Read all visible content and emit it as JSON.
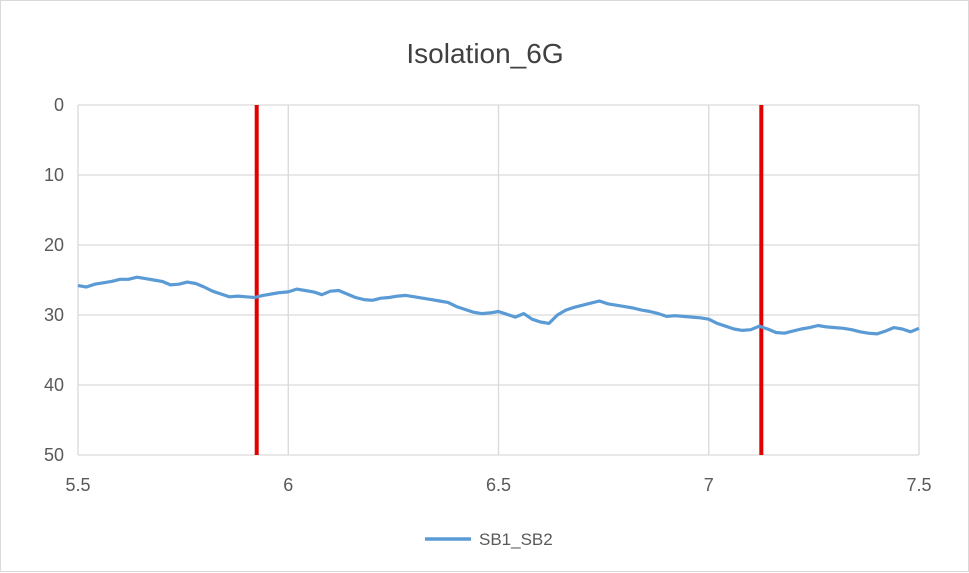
{
  "chart_data": {
    "type": "line",
    "title": "Isolation_6G",
    "xlabel": "",
    "ylabel": "",
    "xlim": [
      5.5,
      7.5
    ],
    "ylim": [
      0,
      50
    ],
    "y_reversed": true,
    "x_ticks": [
      "5.5",
      "6",
      "6.5",
      "7",
      "7.5"
    ],
    "x_tick_values": [
      5.5,
      6.0,
      6.5,
      7.0,
      7.5
    ],
    "y_ticks": [
      "0",
      "10",
      "20",
      "30",
      "40",
      "50"
    ],
    "y_tick_values": [
      0,
      10,
      20,
      30,
      40,
      50
    ],
    "grid": true,
    "legend_position": "bottom",
    "markers": [
      {
        "x": 5.925,
        "color": "#e00000"
      },
      {
        "x": 7.125,
        "color": "#e00000"
      }
    ],
    "series": [
      {
        "name": "SB1_SB2",
        "color": "#5b9bd5",
        "x": [
          5.5,
          5.52,
          5.54,
          5.56,
          5.58,
          5.6,
          5.62,
          5.64,
          5.66,
          5.68,
          5.7,
          5.72,
          5.74,
          5.76,
          5.78,
          5.8,
          5.82,
          5.84,
          5.86,
          5.88,
          5.9,
          5.92,
          5.94,
          5.96,
          5.98,
          6.0,
          6.02,
          6.04,
          6.06,
          6.08,
          6.1,
          6.12,
          6.14,
          6.16,
          6.18,
          6.2,
          6.22,
          6.24,
          6.26,
          6.28,
          6.3,
          6.32,
          6.34,
          6.36,
          6.38,
          6.4,
          6.42,
          6.44,
          6.46,
          6.48,
          6.5,
          6.52,
          6.54,
          6.56,
          6.58,
          6.6,
          6.62,
          6.64,
          6.66,
          6.68,
          6.7,
          6.72,
          6.74,
          6.76,
          6.78,
          6.8,
          6.82,
          6.84,
          6.86,
          6.88,
          6.9,
          6.92,
          6.94,
          6.96,
          6.98,
          7.0,
          7.02,
          7.04,
          7.06,
          7.08,
          7.1,
          7.12,
          7.14,
          7.16,
          7.18,
          7.2,
          7.22,
          7.24,
          7.26,
          7.28,
          7.3,
          7.32,
          7.34,
          7.36,
          7.38,
          7.4,
          7.42,
          7.44,
          7.46,
          7.48,
          7.5
        ],
        "y": [
          25.8,
          26.0,
          25.6,
          25.4,
          25.2,
          24.9,
          24.9,
          24.6,
          24.8,
          25.0,
          25.2,
          25.7,
          25.6,
          25.3,
          25.5,
          26.0,
          26.6,
          27.0,
          27.4,
          27.3,
          27.4,
          27.5,
          27.2,
          27.0,
          26.8,
          26.7,
          26.3,
          26.5,
          26.7,
          27.1,
          26.6,
          26.5,
          27.0,
          27.5,
          27.8,
          27.9,
          27.6,
          27.5,
          27.3,
          27.2,
          27.4,
          27.6,
          27.8,
          28.0,
          28.2,
          28.8,
          29.2,
          29.6,
          29.8,
          29.7,
          29.5,
          29.9,
          30.3,
          29.8,
          30.6,
          31.0,
          31.2,
          30.0,
          29.3,
          28.9,
          28.6,
          28.3,
          28.0,
          28.4,
          28.6,
          28.8,
          29.0,
          29.3,
          29.5,
          29.8,
          30.2,
          30.1,
          30.2,
          30.3,
          30.4,
          30.6,
          31.2,
          31.6,
          32.0,
          32.2,
          32.1,
          31.6,
          32.0,
          32.5,
          32.6,
          32.3,
          32.0,
          31.8,
          31.5,
          31.7,
          31.8,
          31.9,
          32.1,
          32.4,
          32.6,
          32.7,
          32.3,
          31.8,
          32.0,
          32.4,
          31.9
        ]
      }
    ]
  }
}
